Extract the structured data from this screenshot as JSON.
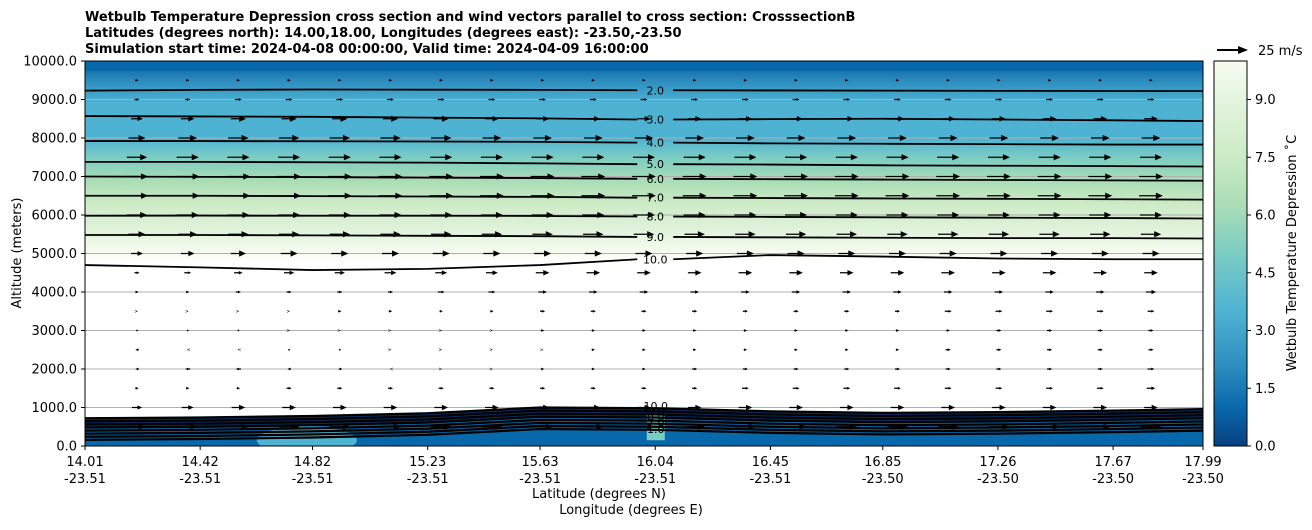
{
  "chart_data": {
    "type": "contour",
    "title_lines": [
      "Wetbulb Temperature Depression cross section and wind vectors parallel to cross section: CrosssectionB",
      "Latitudes (degrees north): 14.00,18.00, Longitudes (degrees east): -23.50,-23.50",
      "Simulation start time: 2024-04-08 00:00:00, Valid time: 2024-04-09 16:00:00"
    ],
    "ylabel": "Altitude (meters)",
    "xlabel": "Latitude (degrees N)",
    "xlabel2": "Longitude (degrees E)",
    "ylim": [
      0,
      10000
    ],
    "xlim": [
      14.01,
      17.99
    ],
    "y_ticks": [
      "0.0",
      "1000.0",
      "2000.0",
      "3000.0",
      "4000.0",
      "5000.0",
      "6000.0",
      "7000.0",
      "8000.0",
      "9000.0",
      "10000.0"
    ],
    "y_tick_values": [
      0,
      1000,
      2000,
      3000,
      4000,
      5000,
      6000,
      7000,
      8000,
      9000,
      10000
    ],
    "x_ticks": [
      {
        "lat": "14.01",
        "lon": "-23.51"
      },
      {
        "lat": "14.42",
        "lon": "-23.51"
      },
      {
        "lat": "14.82",
        "lon": "-23.51"
      },
      {
        "lat": "15.23",
        "lon": "-23.51"
      },
      {
        "lat": "15.63",
        "lon": "-23.51"
      },
      {
        "lat": "16.04",
        "lon": "-23.51"
      },
      {
        "lat": "16.45",
        "lon": "-23.51"
      },
      {
        "lat": "16.85",
        "lon": "-23.50"
      },
      {
        "lat": "17.26",
        "lon": "-23.50"
      },
      {
        "lat": "17.67",
        "lon": "-23.50"
      },
      {
        "lat": "17.99",
        "lon": "-23.50"
      }
    ],
    "x_tick_values": [
      14.01,
      14.42,
      14.82,
      15.23,
      15.63,
      16.04,
      16.45,
      16.85,
      17.26,
      17.67,
      17.99
    ],
    "grid": "horizontal",
    "colorbar": {
      "label": "Wetbulb Temperature Depression ˚C",
      "range": [
        0,
        10
      ],
      "ticks": [
        "0.0",
        "1.5",
        "3.0",
        "4.5",
        "6.0",
        "7.5",
        "9.0"
      ],
      "tick_values": [
        0,
        1.5,
        3.0,
        4.5,
        6.0,
        7.5,
        9.0
      ],
      "levels": 20,
      "colormap": "GnBu reversed",
      "colors": [
        "#08306b",
        "#08589e",
        "#2b8cbe",
        "#4eb3d3",
        "#7bccc4",
        "#a8ddb5",
        "#ccebc5",
        "#e0f3db",
        "#f7fcf0"
      ]
    },
    "quiver_key": {
      "label": "25 m/s",
      "speed": 25
    },
    "contour_lines": [
      {
        "label": "2.0",
        "level": 2.0,
        "altitude": [
          9230,
          9250,
          9260,
          9255,
          9250,
          9240,
          9235,
          9230,
          9225,
          9220,
          9220
        ]
      },
      {
        "label": "3.0",
        "level": 3.0,
        "altitude": [
          8570,
          8560,
          8550,
          8530,
          8510,
          8480,
          8490,
          8500,
          8480,
          8460,
          8440
        ]
      },
      {
        "label": "4.0",
        "level": 4.0,
        "altitude": [
          7920,
          7920,
          7915,
          7910,
          7900,
          7880,
          7860,
          7850,
          7840,
          7830,
          7830
        ]
      },
      {
        "label": "5.0",
        "level": 5.0,
        "altitude": [
          7380,
          7380,
          7370,
          7360,
          7340,
          7320,
          7310,
          7290,
          7280,
          7270,
          7260
        ]
      },
      {
        "label": "6.0",
        "level": 6.0,
        "altitude": [
          7000,
          6990,
          6985,
          6970,
          6960,
          6940,
          6930,
          6920,
          6910,
          6900,
          6890
        ]
      },
      {
        "label": "7.0",
        "level": 7.0,
        "altitude": [
          6500,
          6500,
          6490,
          6480,
          6470,
          6450,
          6440,
          6430,
          6420,
          6410,
          6400
        ]
      },
      {
        "label": "8.0",
        "level": 8.0,
        "altitude": [
          5980,
          5985,
          5980,
          5980,
          5975,
          5960,
          5950,
          5940,
          5930,
          5920,
          5910
        ]
      },
      {
        "label": "9.0",
        "level": 9.0,
        "altitude": [
          5480,
          5480,
          5470,
          5460,
          5450,
          5430,
          5420,
          5410,
          5400,
          5400,
          5390
        ]
      },
      {
        "label": "10.0",
        "level": 10.0,
        "altitude": [
          4700,
          4640,
          4570,
          4600,
          4700,
          4850,
          4960,
          4920,
          4870,
          4850,
          4850
        ]
      }
    ],
    "low_contour_labels": [
      "10.0",
      "9.0",
      "8.0",
      "7.0",
      "1.0",
      "2.0",
      "4.0",
      "6.0"
    ],
    "wind_levels": [
      {
        "altitude": 9500,
        "u": [
          2,
          2,
          2,
          2,
          2,
          2,
          2,
          2,
          2,
          2,
          2,
          2,
          2,
          2,
          2,
          2,
          2,
          2,
          2,
          2,
          2
        ]
      },
      {
        "altitude": 9000,
        "u": [
          3,
          3,
          4,
          4,
          4,
          4,
          4,
          4,
          4,
          4,
          4,
          4,
          4,
          4,
          4,
          4,
          4,
          4,
          4,
          4,
          4
        ]
      },
      {
        "altitude": 8500,
        "u": [
          7,
          8,
          9,
          9,
          9,
          9,
          9,
          8,
          8,
          8,
          8,
          8,
          8,
          8,
          8,
          8,
          8,
          8,
          8,
          8,
          8
        ]
      },
      {
        "altitude": 8000,
        "u": [
          10,
          11,
          12,
          12,
          12,
          12,
          12,
          11,
          11,
          11,
          11,
          11,
          11,
          11,
          11,
          11,
          11,
          11,
          11,
          11,
          11
        ]
      },
      {
        "altitude": 7500,
        "u": [
          12,
          13,
          13,
          13,
          13,
          13,
          13,
          13,
          13,
          13,
          13,
          13,
          13,
          13,
          13,
          13,
          13,
          13,
          13,
          13,
          13
        ]
      },
      {
        "altitude": 7000,
        "u": [
          13,
          14,
          14,
          14,
          14,
          14,
          14,
          14,
          14,
          14,
          14,
          14,
          14,
          14,
          14,
          14,
          14,
          14,
          14,
          14,
          14
        ]
      },
      {
        "altitude": 6500,
        "u": [
          13,
          14,
          14,
          14,
          14,
          14,
          14,
          14,
          14,
          14,
          14,
          14,
          14,
          14,
          14,
          14,
          14,
          14,
          14,
          14,
          14
        ]
      },
      {
        "altitude": 6000,
        "u": [
          12,
          13,
          13,
          13,
          13,
          13,
          13,
          13,
          13,
          13,
          13,
          13,
          13,
          13,
          13,
          13,
          13,
          13,
          13,
          13,
          13
        ]
      },
      {
        "altitude": 5500,
        "u": [
          10,
          11,
          12,
          12,
          12,
          12,
          12,
          12,
          12,
          12,
          12,
          12,
          12,
          12,
          12,
          12,
          12,
          12,
          12,
          12,
          12
        ]
      },
      {
        "altitude": 5000,
        "u": [
          7,
          8,
          9,
          10,
          10,
          10,
          10,
          10,
          10,
          10,
          10,
          10,
          10,
          10,
          10,
          10,
          10,
          10,
          10,
          10,
          10
        ]
      },
      {
        "altitude": 4500,
        "u": [
          3,
          4,
          5,
          6,
          6,
          7,
          7,
          7,
          8,
          8,
          8,
          8,
          8,
          8,
          8,
          8,
          8,
          8,
          8,
          8,
          8
        ]
      },
      {
        "altitude": 4000,
        "u": [
          2,
          2,
          3,
          3,
          3,
          3,
          4,
          4,
          5,
          5,
          5,
          5,
          5,
          5,
          5,
          5,
          5,
          5,
          5,
          5,
          6
        ]
      },
      {
        "altitude": 3500,
        "u": [
          1,
          1,
          1,
          1,
          2,
          2,
          2,
          2,
          3,
          3,
          3,
          3,
          3,
          3,
          3,
          3,
          4,
          4,
          4,
          4,
          4
        ]
      },
      {
        "altitude": 3000,
        "u": [
          0,
          0,
          0,
          1,
          1,
          1,
          1,
          1,
          2,
          2,
          2,
          2,
          2,
          2,
          2,
          2,
          2,
          3,
          3,
          3,
          3
        ]
      },
      {
        "altitude": 2500,
        "u": [
          -2,
          -1,
          -1,
          0,
          0,
          1,
          1,
          1,
          1,
          2,
          2,
          2,
          2,
          2,
          2,
          2,
          3,
          3,
          3,
          3,
          3
        ]
      },
      {
        "altitude": 2000,
        "u": [
          -2,
          -3,
          -3,
          -2,
          -2,
          -1,
          1,
          1,
          2,
          2,
          2,
          3,
          3,
          3,
          3,
          3,
          3,
          3,
          3,
          3,
          4
        ]
      },
      {
        "altitude": 1500,
        "u": [
          2,
          2,
          2,
          3,
          3,
          3,
          3,
          3,
          3,
          3,
          3,
          3,
          4,
          4,
          4,
          4,
          4,
          4,
          4,
          4,
          5
        ]
      },
      {
        "altitude": 1000,
        "u": [
          6,
          7,
          8,
          8,
          8,
          8,
          8,
          8,
          8,
          8,
          8,
          8,
          8,
          8,
          8,
          8,
          8,
          8,
          8,
          8,
          8
        ]
      },
      {
        "altitude": 500,
        "u": [
          10,
          11,
          12,
          12,
          12,
          12,
          12,
          12,
          12,
          12,
          12,
          12,
          12,
          12,
          12,
          12,
          12,
          12,
          12,
          12,
          12
        ]
      }
    ]
  }
}
